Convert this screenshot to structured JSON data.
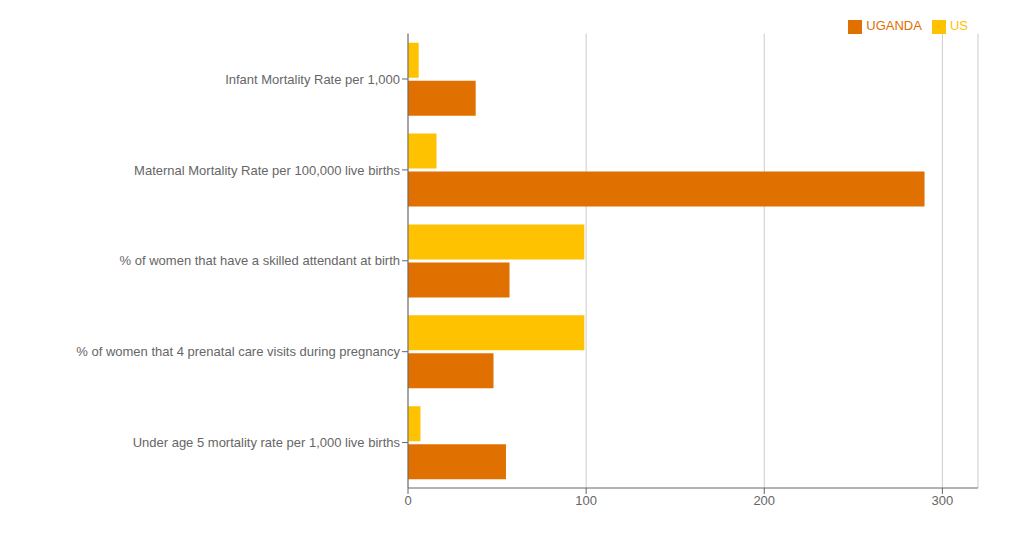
{
  "chart_data": {
    "type": "bar",
    "orientation": "horizontal",
    "categories": [
      "Infant Mortality Rate per 1,000",
      "Maternal Mortality Rate per 100,000 live births",
      "% of women that have a skilled attendant at birth",
      "% of women that 4 prenatal care visits during pregnancy",
      "Under age 5 mortality rate per 1,000 live births"
    ],
    "series": [
      {
        "name": "US",
        "color": "#FFC200",
        "values": [
          6,
          16,
          99,
          99,
          7
        ]
      },
      {
        "name": "UGANDA",
        "color": "#E07000",
        "values": [
          38,
          290,
          57,
          48,
          55
        ]
      }
    ],
    "xlim": [
      0,
      320
    ],
    "xticks": [
      0,
      100,
      200,
      300
    ],
    "grid": true,
    "legend": "upper right"
  }
}
